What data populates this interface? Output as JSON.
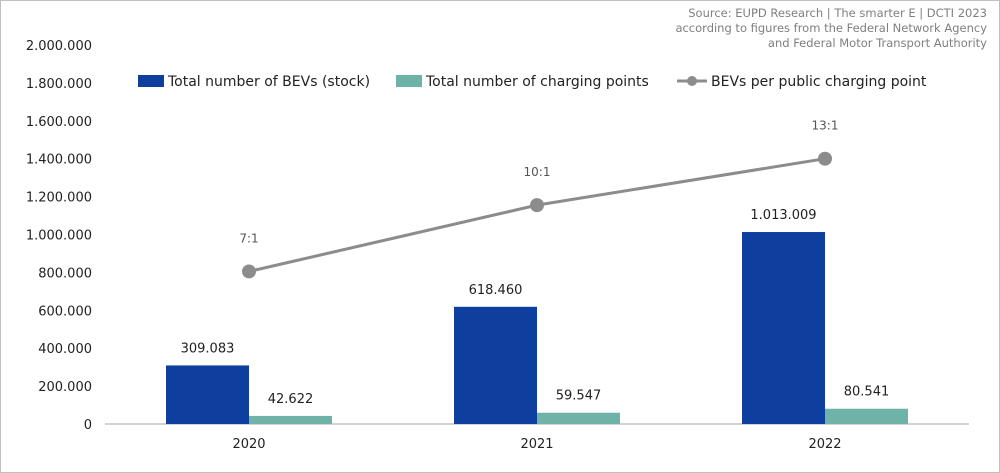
{
  "source": {
    "lines": [
      "Source: EUPD Research | The smarter E | DCTI 2023",
      "according to figures from the Federal Network Agency",
      "and Federal Motor Transport Authority"
    ]
  },
  "chart_data": {
    "type": "bar",
    "categories": [
      "2020",
      "2021",
      "2022"
    ],
    "series": [
      {
        "name": "Total number of BEVs (stock)",
        "type": "bar",
        "values": [
          309083,
          618460,
          1013009
        ],
        "labels": [
          "309.083",
          "618.460",
          "1.013.009"
        ],
        "color": "#0e3f9e"
      },
      {
        "name": "Total number of charging points",
        "type": "bar",
        "values": [
          42622,
          59547,
          80541
        ],
        "labels": [
          "42.622",
          "59.547",
          "80.541"
        ],
        "color": "#6fb3a8"
      },
      {
        "name": "BEVs per public charging point",
        "type": "line",
        "ratio_values": [
          7,
          10,
          13
        ],
        "plotted_on_left_axis": [
          805000,
          1155000,
          1400000
        ],
        "labels": [
          "7:1",
          "10:1",
          "13:1"
        ],
        "color": "#8c8c8c"
      }
    ],
    "ylim": [
      0,
      2000000
    ],
    "yticks": [
      0,
      200000,
      400000,
      600000,
      800000,
      1000000,
      1200000,
      1400000,
      1600000,
      1800000,
      2000000
    ],
    "ytick_labels": [
      "0",
      "200.000",
      "400.000",
      "600.000",
      "800.000",
      "1.000.000",
      "1.200.000",
      "1.400.000",
      "1.600.000",
      "1.800.000",
      "2.000.000"
    ],
    "title": "",
    "xlabel": "",
    "ylabel": "",
    "legend_position": "top",
    "grid": false
  }
}
